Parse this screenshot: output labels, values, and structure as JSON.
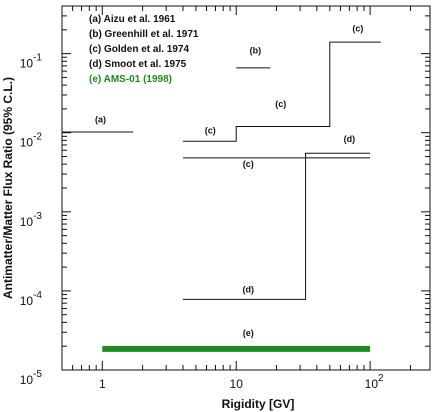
{
  "chart_data": {
    "type": "line",
    "xlabel": "Rigidity   [GV]",
    "ylabel": "Antimatter/Matter Flux Ratio (95% C.L.)",
    "x_scale": "log",
    "y_scale": "log",
    "xlim": [
      0.5,
      280
    ],
    "ylim": [
      1e-05,
      0.4
    ],
    "grid": false,
    "legend_placement": "top-left",
    "x_tick_labels": [
      "1",
      "10",
      "10^2"
    ],
    "y_tick_labels": [
      "10^-5",
      "10^-4",
      "10^-3",
      "10^-2",
      "10^-1"
    ],
    "legend": [
      "(a) Aizu et al. 1961",
      "(b) Greenhill et al. 1971",
      "(c) Golden  et al. 1974",
      "(d) Smoot et al. 1975",
      "(e) AMS-01 (1998)"
    ],
    "series": [
      {
        "name": "(a)",
        "color": "#111111",
        "x": [
          0.5,
          1.7
        ],
        "y": [
          0.0102,
          0.0102
        ],
        "labels": [
          {
            "text": "(a)",
            "x": 0.97,
            "y": 0.0135
          }
        ]
      },
      {
        "name": "(b)",
        "color": "#111111",
        "x": [
          10,
          18
        ],
        "y": [
          0.066,
          0.066
        ],
        "labels": [
          {
            "text": "(b)",
            "x": 13.9,
            "y": 0.1
          }
        ]
      },
      {
        "name": "(c) upper",
        "color": "#111111",
        "x": [
          4,
          10,
          10,
          50,
          50,
          120
        ],
        "y": [
          0.0078,
          0.0078,
          0.012,
          0.012,
          0.14,
          0.14
        ],
        "labels": [
          {
            "text": "(c)",
            "x": 6.4,
            "y": 0.0098
          },
          {
            "text": "(c)",
            "x": 21.5,
            "y": 0.021
          },
          {
            "text": "(c)",
            "x": 81,
            "y": 0.19
          }
        ]
      },
      {
        "name": "(c) lower",
        "color": "#111111",
        "x": [
          4,
          100
        ],
        "y": [
          0.0048,
          0.0048
        ],
        "labels": [
          {
            "text": "(c)",
            "x": 12.3,
            "y": 0.0037
          }
        ]
      },
      {
        "name": "(d)",
        "color": "#111111",
        "x": [
          4,
          33,
          33,
          100
        ],
        "y": [
          7.8e-05,
          7.8e-05,
          0.0055,
          0.0055
        ],
        "labels": [
          {
            "text": "(d)",
            "x": 12.3,
            "y": 9.5e-05
          },
          {
            "text": "(d)",
            "x": 70,
            "y": 0.0076
          }
        ]
      },
      {
        "name": "(e)",
        "color": "#1f8a1f",
        "x": [
          1,
          100
        ],
        "y": [
          1.85e-05,
          1.85e-05
        ],
        "labels": [
          {
            "text": "(e)",
            "x": 12.3,
            "y": 2.7e-05
          }
        ]
      }
    ]
  }
}
